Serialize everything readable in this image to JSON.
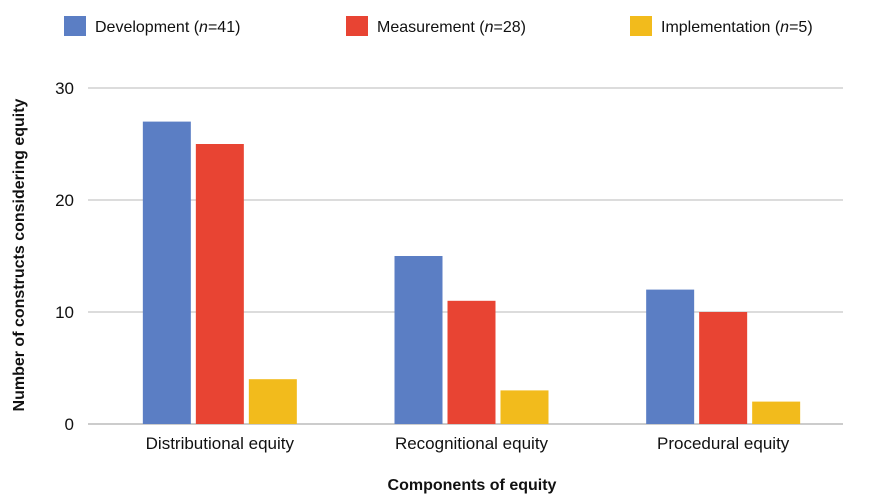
{
  "chart_data": {
    "type": "bar",
    "title": "",
    "xlabel": "Components of equity",
    "ylabel": "Number of constructs considering equity",
    "categories": [
      "Distributional equity",
      "Recognitional equity",
      "Procedural equity"
    ],
    "series": [
      {
        "name": "Development",
        "n_label": "n",
        "n_value": "=41",
        "n_close": ")",
        "color": "#5b7ec4",
        "values": [
          27,
          15,
          12
        ]
      },
      {
        "name": "Measurement",
        "n_label": "n",
        "n_value": "=28",
        "n_close": ")",
        "color": "#e84433",
        "values": [
          25,
          11,
          10
        ]
      },
      {
        "name": "Implementation",
        "n_label": "n",
        "n_value": "=5",
        "n_close": ")",
        "color": "#f2bb1c",
        "values": [
          4,
          3,
          2
        ]
      }
    ],
    "ylim": [
      0,
      30
    ],
    "yticks": [
      0,
      10,
      20,
      30
    ],
    "grid": true,
    "legend": "top"
  }
}
